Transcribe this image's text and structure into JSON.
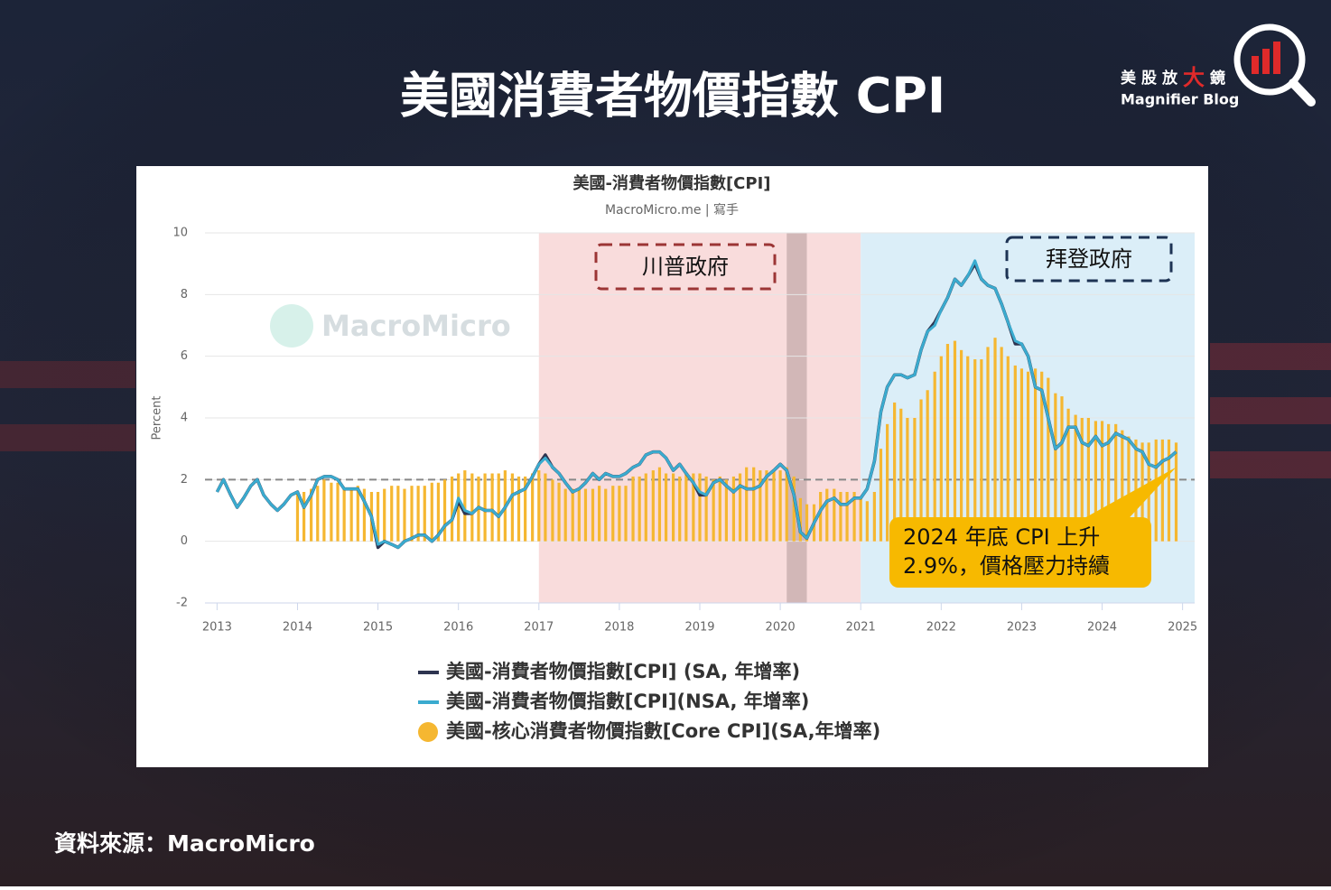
{
  "header": {
    "title": "美國消費者物價指數 CPI"
  },
  "logo": {
    "name_parts": [
      "美股放",
      "大",
      "鏡"
    ],
    "tagline": "Magnifier Blog"
  },
  "footer": {
    "source": "資料來源：MacroMicro"
  },
  "chart_data": {
    "type": "combo",
    "title": "美國-消費者物價指數[CPI]",
    "subtitle": "MacroMicro.me | 寫手",
    "watermark": "MacroMicro",
    "y_label": "Percent",
    "xlim": [
      2012.85,
      2025.15
    ],
    "xticks": [
      2013,
      2014,
      2015,
      2016,
      2017,
      2018,
      2019,
      2020,
      2021,
      2022,
      2023,
      2024,
      2025
    ],
    "ylim": [
      -2,
      10
    ],
    "yticks": [
      -2,
      0,
      2,
      4,
      6,
      8,
      10
    ],
    "grid": true,
    "hline": 2,
    "bands": [
      {
        "label": "川普政府",
        "x": [
          2017,
          2021
        ],
        "color": "#f9dcdc"
      },
      {
        "x": [
          2020.08,
          2020.33
        ],
        "color": "#d2b7b7"
      },
      {
        "label": "拜登政府",
        "x": [
          2021,
          2025.15
        ],
        "color": "#dbeef8"
      }
    ],
    "annotation": {
      "lines": [
        "2024 年底 CPI 上升",
        "2.9%，價格壓力持續"
      ],
      "x": 2024.92,
      "y": 2.4
    },
    "x": [
      2013,
      2013.08,
      2013.17,
      2013.25,
      2013.33,
      2013.42,
      2013.5,
      2013.58,
      2013.67,
      2013.75,
      2013.83,
      2013.92,
      2014,
      2014.08,
      2014.17,
      2014.25,
      2014.33,
      2014.42,
      2014.5,
      2014.58,
      2014.67,
      2014.75,
      2014.83,
      2014.92,
      2015,
      2015.08,
      2015.17,
      2015.25,
      2015.33,
      2015.42,
      2015.5,
      2015.58,
      2015.67,
      2015.75,
      2015.83,
      2015.92,
      2016,
      2016.08,
      2016.17,
      2016.25,
      2016.33,
      2016.42,
      2016.5,
      2016.58,
      2016.67,
      2016.75,
      2016.83,
      2016.92,
      2017,
      2017.08,
      2017.17,
      2017.25,
      2017.33,
      2017.42,
      2017.5,
      2017.58,
      2017.67,
      2017.75,
      2017.83,
      2017.92,
      2018,
      2018.08,
      2018.17,
      2018.25,
      2018.33,
      2018.42,
      2018.5,
      2018.58,
      2018.67,
      2018.75,
      2018.83,
      2018.92,
      2019,
      2019.08,
      2019.17,
      2019.25,
      2019.33,
      2019.42,
      2019.5,
      2019.58,
      2019.67,
      2019.75,
      2019.83,
      2019.92,
      2020,
      2020.08,
      2020.17,
      2020.25,
      2020.33,
      2020.42,
      2020.5,
      2020.58,
      2020.67,
      2020.75,
      2020.83,
      2020.92,
      2021,
      2021.08,
      2021.17,
      2021.25,
      2021.33,
      2021.42,
      2021.5,
      2021.58,
      2021.67,
      2021.75,
      2021.83,
      2021.92,
      2022,
      2022.08,
      2022.17,
      2022.25,
      2022.33,
      2022.42,
      2022.5,
      2022.58,
      2022.67,
      2022.75,
      2022.83,
      2022.92,
      2023,
      2023.08,
      2023.17,
      2023.25,
      2023.33,
      2023.42,
      2023.5,
      2023.58,
      2023.67,
      2023.75,
      2023.83,
      2023.92,
      2024,
      2024.08,
      2024.17,
      2024.25,
      2024.33,
      2024.42,
      2024.5,
      2024.58,
      2024.67,
      2024.75,
      2024.83,
      2024.92
    ],
    "series": [
      {
        "name": "美國-消費者物價指數[CPI] (SA, 年增率)",
        "kind": "line",
        "color": "#2e3450",
        "values": [
          1.6,
          2.0,
          1.5,
          1.1,
          1.4,
          1.8,
          2.0,
          1.5,
          1.2,
          1.0,
          1.2,
          1.5,
          1.6,
          1.1,
          1.5,
          2.0,
          2.1,
          2.1,
          2.0,
          1.7,
          1.7,
          1.7,
          1.3,
          0.8,
          -0.2,
          0.0,
          -0.1,
          -0.2,
          0.0,
          0.1,
          0.2,
          0.2,
          0.0,
          0.2,
          0.5,
          0.7,
          1.3,
          0.9,
          0.9,
          1.1,
          1.0,
          1.0,
          0.8,
          1.1,
          1.5,
          1.6,
          1.7,
          2.1,
          2.5,
          2.8,
          2.4,
          2.2,
          1.9,
          1.6,
          1.7,
          1.9,
          2.2,
          2.0,
          2.2,
          2.1,
          2.1,
          2.2,
          2.4,
          2.5,
          2.8,
          2.9,
          2.9,
          2.7,
          2.3,
          2.5,
          2.2,
          1.9,
          1.5,
          1.5,
          1.9,
          2.0,
          1.8,
          1.6,
          1.8,
          1.7,
          1.7,
          1.8,
          2.1,
          2.3,
          2.5,
          2.3,
          1.5,
          0.3,
          0.1,
          0.6,
          1.0,
          1.3,
          1.4,
          1.2,
          1.2,
          1.4,
          1.4,
          1.7,
          2.6,
          4.2,
          5.0,
          5.4,
          5.4,
          5.3,
          5.4,
          6.2,
          6.8,
          7.1,
          7.5,
          7.9,
          8.5,
          8.3,
          8.6,
          9.0,
          8.5,
          8.3,
          8.2,
          7.7,
          7.1,
          6.4,
          6.4,
          6.0,
          5.0,
          4.9,
          4.0,
          3.0,
          3.2,
          3.7,
          3.7,
          3.2,
          3.1,
          3.4,
          3.1,
          3.2,
          3.5,
          3.4,
          3.3,
          3.0,
          2.9,
          2.5,
          2.4,
          2.6,
          2.7,
          2.9
        ]
      },
      {
        "name": "美國-消費者物價指數[CPI](NSA, 年增率)",
        "kind": "line",
        "color": "#3aabcf",
        "values": [
          1.6,
          2.0,
          1.5,
          1.1,
          1.4,
          1.8,
          2.0,
          1.5,
          1.2,
          1.0,
          1.2,
          1.5,
          1.6,
          1.1,
          1.5,
          2.0,
          2.1,
          2.1,
          2.0,
          1.7,
          1.7,
          1.7,
          1.3,
          0.8,
          -0.1,
          0.0,
          -0.1,
          -0.2,
          0.0,
          0.1,
          0.2,
          0.2,
          0.0,
          0.2,
          0.5,
          0.7,
          1.4,
          1.0,
          0.9,
          1.1,
          1.0,
          1.0,
          0.8,
          1.1,
          1.5,
          1.6,
          1.7,
          2.1,
          2.5,
          2.7,
          2.4,
          2.2,
          1.9,
          1.6,
          1.7,
          1.9,
          2.2,
          2.0,
          2.2,
          2.1,
          2.1,
          2.2,
          2.4,
          2.5,
          2.8,
          2.9,
          2.9,
          2.7,
          2.3,
          2.5,
          2.2,
          1.9,
          1.6,
          1.5,
          1.9,
          2.0,
          1.8,
          1.6,
          1.8,
          1.7,
          1.7,
          1.8,
          2.1,
          2.3,
          2.5,
          2.3,
          1.5,
          0.3,
          0.1,
          0.6,
          1.0,
          1.3,
          1.4,
          1.2,
          1.2,
          1.4,
          1.4,
          1.7,
          2.6,
          4.2,
          5.0,
          5.4,
          5.4,
          5.3,
          5.4,
          6.2,
          6.8,
          7.0,
          7.5,
          7.9,
          8.5,
          8.3,
          8.6,
          9.1,
          8.5,
          8.3,
          8.2,
          7.7,
          7.1,
          6.5,
          6.4,
          6.0,
          5.0,
          4.9,
          4.0,
          3.0,
          3.2,
          3.7,
          3.7,
          3.2,
          3.1,
          3.4,
          3.1,
          3.2,
          3.5,
          3.4,
          3.3,
          3.0,
          2.9,
          2.5,
          2.4,
          2.6,
          2.7,
          2.9
        ]
      },
      {
        "name": "美國-核心消費者物價指數[Core CPI](SA,年增率)",
        "kind": "bar",
        "color": "#f5b731",
        "values": [
          null,
          null,
          null,
          null,
          null,
          null,
          null,
          null,
          null,
          null,
          null,
          null,
          1.6,
          1.6,
          1.7,
          1.8,
          2.0,
          1.9,
          1.9,
          1.7,
          1.7,
          1.8,
          1.7,
          1.6,
          1.6,
          1.7,
          1.8,
          1.8,
          1.7,
          1.8,
          1.8,
          1.8,
          1.9,
          1.9,
          2.0,
          2.1,
          2.2,
          2.3,
          2.2,
          2.1,
          2.2,
          2.2,
          2.2,
          2.3,
          2.2,
          2.1,
          2.1,
          2.2,
          2.3,
          2.2,
          2.0,
          1.9,
          1.7,
          1.7,
          1.7,
          1.7,
          1.7,
          1.8,
          1.7,
          1.8,
          1.8,
          1.8,
          2.1,
          2.1,
          2.2,
          2.3,
          2.4,
          2.2,
          2.2,
          2.1,
          2.2,
          2.2,
          2.2,
          2.1,
          2.0,
          2.1,
          2.0,
          2.1,
          2.2,
          2.4,
          2.4,
          2.3,
          2.3,
          2.3,
          2.3,
          2.4,
          2.1,
          1.4,
          1.2,
          1.2,
          1.6,
          1.7,
          1.7,
          1.6,
          1.6,
          1.6,
          1.4,
          1.3,
          1.6,
          3.0,
          3.8,
          4.5,
          4.3,
          4.0,
          4.0,
          4.6,
          4.9,
          5.5,
          6.0,
          6.4,
          6.5,
          6.2,
          6.0,
          5.9,
          5.9,
          6.3,
          6.6,
          6.3,
          6.0,
          5.7,
          5.6,
          5.5,
          5.6,
          5.5,
          5.3,
          4.8,
          4.7,
          4.3,
          4.1,
          4.0,
          4.0,
          3.9,
          3.9,
          3.8,
          3.8,
          3.6,
          3.4,
          3.3,
          3.2,
          3.2,
          3.3,
          3.3,
          3.3,
          3.2
        ]
      }
    ]
  }
}
